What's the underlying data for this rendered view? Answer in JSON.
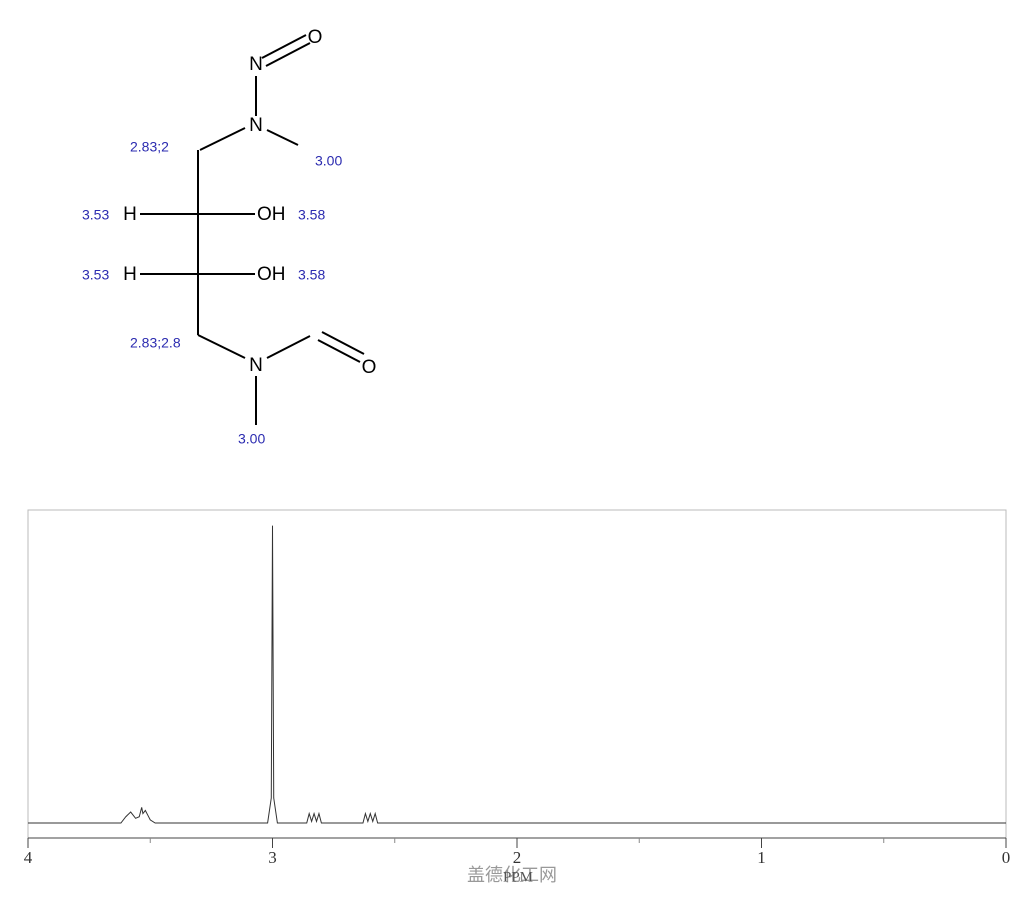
{
  "structure": {
    "atoms": [
      "O",
      "N",
      "N",
      "H",
      "OH",
      "H",
      "OH",
      "N",
      "O"
    ],
    "shifts": [
      "2.83;2",
      "3.00",
      "3.53",
      "3.58",
      "3.53",
      "3.58",
      "2.83;2.8",
      "3.00"
    ]
  },
  "chart_data": {
    "type": "line",
    "xlabel": "PPM",
    "watermark": "盖德化工网",
    "xlim": [
      4,
      0
    ],
    "xticks": [
      4,
      3,
      2,
      1,
      0
    ],
    "xminorticks": [
      3.5,
      2.5,
      1.5,
      0.5
    ],
    "ylim": [
      0,
      100
    ],
    "color": "#333333",
    "x": [
      4.0,
      3.62,
      3.6,
      3.58,
      3.56,
      3.545,
      3.535,
      3.53,
      3.52,
      3.51,
      3.5,
      3.48,
      3.02,
      3.005,
      3.0,
      2.995,
      2.98,
      2.86,
      2.85,
      2.84,
      2.83,
      2.82,
      2.81,
      2.8,
      2.63,
      2.62,
      2.61,
      2.6,
      2.59,
      2.58,
      2.57,
      0.0
    ],
    "values": [
      0,
      0,
      2,
      3.5,
      1.5,
      2,
      5,
      3,
      4,
      2.5,
      1,
      0,
      0,
      8,
      95,
      8,
      0,
      0,
      3,
      0.5,
      3,
      0.5,
      3,
      0,
      0,
      3,
      0.5,
      3,
      0.5,
      3,
      0,
      0
    ]
  }
}
